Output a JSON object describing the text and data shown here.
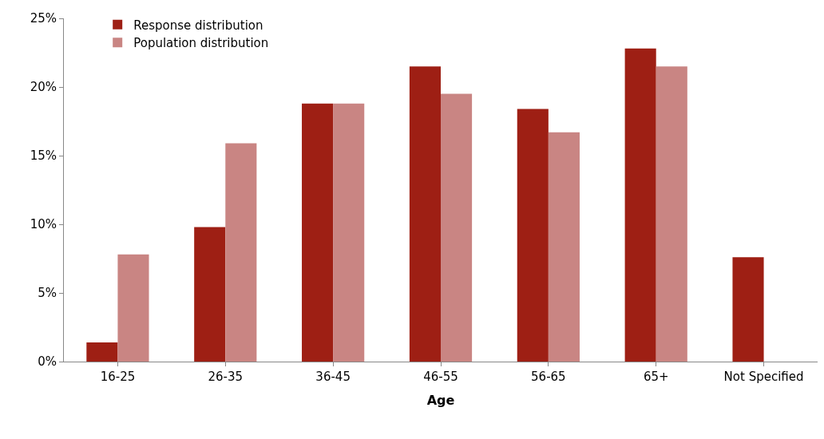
{
  "chart_data": {
    "type": "bar",
    "xlabel": "Age",
    "categories": [
      "16-25",
      "26-35",
      "36-45",
      "46-55",
      "56-65",
      "65+",
      "Not Specified"
    ],
    "series": [
      {
        "name": "Response distribution",
        "color": "#9e1f14",
        "values": [
          1.4,
          9.8,
          18.8,
          21.5,
          18.4,
          22.8,
          7.6
        ]
      },
      {
        "name": "Population distribution",
        "color": "#c98583",
        "values": [
          7.8,
          15.9,
          18.8,
          19.5,
          16.7,
          21.5,
          null
        ]
      }
    ],
    "ylim": [
      0,
      25
    ],
    "yticks": [
      {
        "value": 0,
        "label": "0%"
      },
      {
        "value": 5,
        "label": "5%"
      },
      {
        "value": 10,
        "label": "10%"
      },
      {
        "value": 15,
        "label": "15%"
      },
      {
        "value": 20,
        "label": "20%"
      },
      {
        "value": 25,
        "label": "25%"
      }
    ],
    "legend": "top left"
  }
}
